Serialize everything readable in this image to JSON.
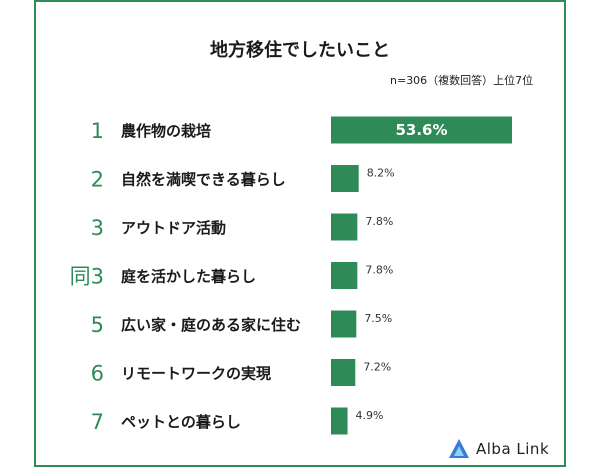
{
  "chart_data": {
    "type": "bar",
    "title": "地方移住でしたいこと",
    "note": "n=306（複数回答）上位7位",
    "ranks": [
      "1",
      "2",
      "3",
      "同3",
      "5",
      "6",
      "7"
    ],
    "categories": [
      "農作物の栽培",
      "自然を満喫できる暮らし",
      "アウトドア活動",
      "庭を活かした暮らし",
      "広い家・庭のある家に住む",
      "リモートワークの実現",
      "ペットとの暮らし"
    ],
    "values": [
      53.6,
      8.2,
      7.8,
      7.8,
      7.5,
      7.2,
      4.9
    ],
    "value_labels": [
      "53.6%",
      "8.2%",
      "7.8%",
      "7.8%",
      "7.5%",
      "7.2%",
      "4.9%"
    ],
    "xlim": [
      0,
      53.6
    ],
    "bar_color": "#2e8b57",
    "rank_color": "#2e8b57"
  },
  "brand": {
    "name": "Alba Link",
    "logo_color": "#3a7bd5"
  }
}
